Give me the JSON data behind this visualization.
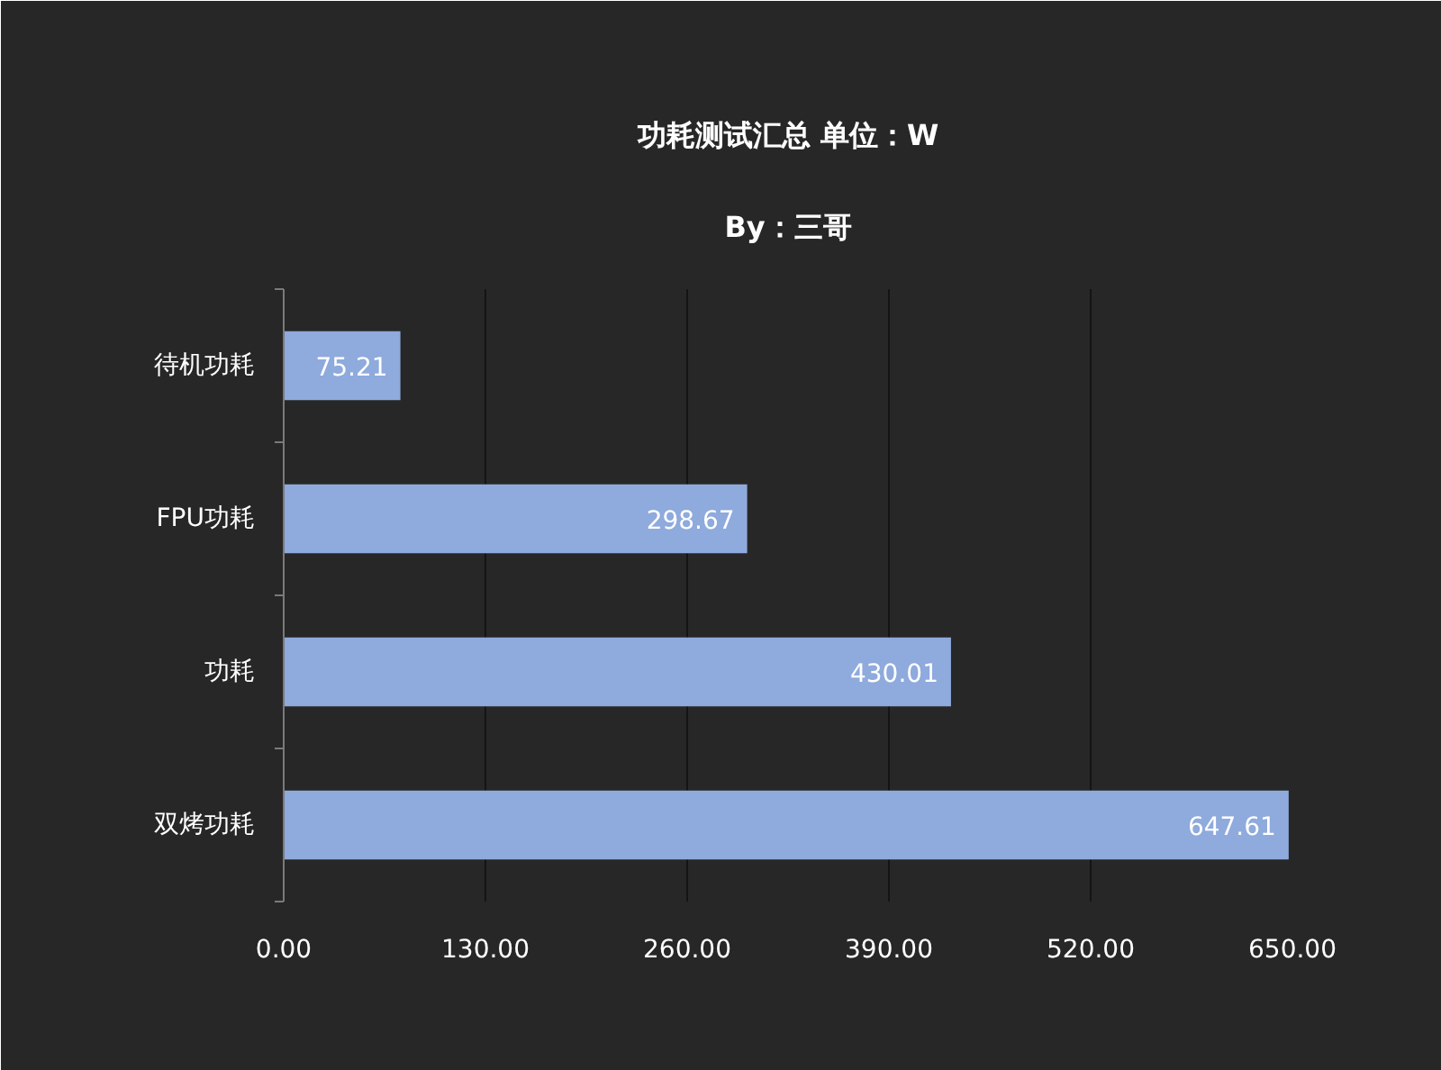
{
  "chart_data": {
    "type": "bar",
    "orientation": "horizontal",
    "title": "功耗测试汇总 单位：W",
    "subtitle": "By：三哥",
    "categories": [
      "待机功耗",
      "FPU功耗",
      "功耗",
      "双烤功耗"
    ],
    "values": [
      75.21,
      298.67,
      430.01,
      647.61
    ],
    "color": "#8faadc",
    "xlim": [
      0,
      650
    ],
    "xticks": [
      {
        "value": 0,
        "label": "0.00"
      },
      {
        "value": 130,
        "label": "130.00"
      },
      {
        "value": 260,
        "label": "260.00"
      },
      {
        "value": 390,
        "label": "390.00"
      },
      {
        "value": 520,
        "label": "520.00"
      },
      {
        "value": 650,
        "label": "650.00"
      }
    ],
    "grid": "x",
    "data_labels": true
  }
}
